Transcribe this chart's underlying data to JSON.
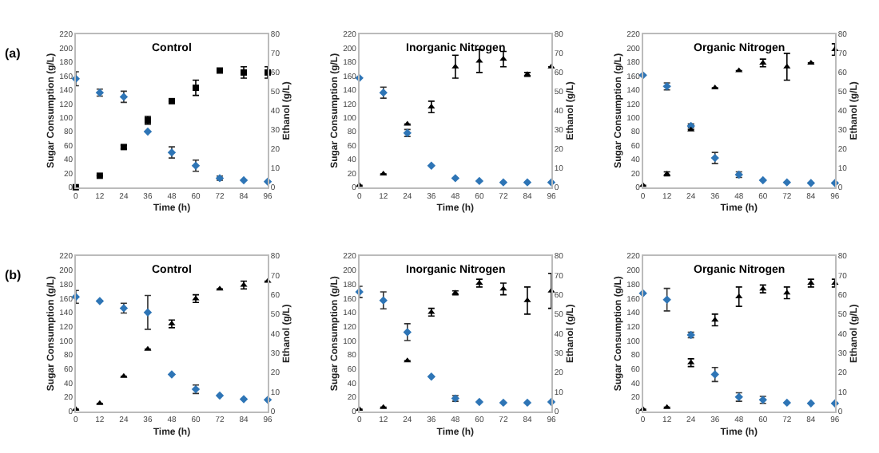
{
  "chart_data": [
    {
      "type": "scatter",
      "title": "Control",
      "xlabel": "Time (h)",
      "ylabel": "Sugar Consumption (g/L)",
      "y2label": "Ethanol (g/L)",
      "annotations": [
        "(a)"
      ],
      "x": [
        0,
        12,
        24,
        36,
        48,
        60,
        72,
        84,
        96
      ],
      "xlim": [
        0,
        96
      ],
      "xticks": [
        0,
        12,
        24,
        36,
        48,
        60,
        72,
        84,
        96
      ],
      "ylim": [
        0,
        220
      ],
      "yticks": [
        0,
        20,
        40,
        60,
        80,
        100,
        120,
        140,
        160,
        180,
        200,
        220
      ],
      "y2lim": [
        0,
        80
      ],
      "y2ticks": [
        0,
        10,
        20,
        30,
        40,
        50,
        60,
        70,
        80
      ],
      "series": [
        {
          "color": "#2e75b6",
          "marker": "diamond",
          "values": [
            156,
            136,
            130,
            80,
            50,
            31,
            13,
            10,
            8
          ],
          "errors": [
            10,
            5,
            8,
            null,
            8,
            8,
            3,
            null,
            null
          ]
        },
        {
          "color": "#000000",
          "marker": "square",
          "axis": "y2",
          "values": [
            0,
            6,
            21,
            35,
            45,
            52,
            61,
            60,
            60
          ],
          "errors": [
            null,
            null,
            1,
            2,
            null,
            4,
            null,
            3,
            3
          ]
        }
      ]
    },
    {
      "type": "scatter",
      "title": "Inorganic Nitrogen",
      "xlabel": "Time (h)",
      "ylabel": "Sugar Consumption (g/L)",
      "y2label": "Ethanol (g/L)",
      "x": [
        0,
        12,
        24,
        36,
        48,
        60,
        72,
        84,
        96
      ],
      "xlim": [
        0,
        96
      ],
      "xticks": [
        0,
        12,
        24,
        36,
        48,
        60,
        72,
        84,
        96
      ],
      "ylim": [
        0,
        220
      ],
      "yticks": [
        0,
        20,
        40,
        60,
        80,
        100,
        120,
        140,
        160,
        180,
        200,
        220
      ],
      "y2lim": [
        0,
        80
      ],
      "y2ticks": [
        0,
        10,
        20,
        30,
        40,
        50,
        60,
        70,
        80
      ],
      "series": [
        {
          "color": "#2e75b6",
          "marker": "diamond",
          "values": [
            157,
            136,
            78,
            31,
            13,
            9,
            7,
            7,
            7
          ],
          "errors": [
            null,
            8,
            5,
            null,
            null,
            null,
            null,
            null,
            null
          ]
        },
        {
          "color": "#000000",
          "marker": "triangle",
          "axis": "y2",
          "values": [
            1,
            7,
            33,
            42,
            63,
            66,
            67,
            59,
            63
          ],
          "errors": [
            null,
            null,
            null,
            3,
            6,
            6,
            4,
            1,
            null
          ]
        }
      ]
    },
    {
      "type": "scatter",
      "title": "Organic Nitrogen",
      "xlabel": "Time (h)",
      "ylabel": "Sugar Consumption (g/L)",
      "y2label": "Ethanol (g/L)",
      "x": [
        0,
        12,
        24,
        36,
        48,
        60,
        72,
        84,
        96
      ],
      "xlim": [
        0,
        96
      ],
      "xticks": [
        0,
        12,
        24,
        36,
        48,
        60,
        72,
        84,
        96
      ],
      "ylim": [
        0,
        220
      ],
      "yticks": [
        0,
        20,
        40,
        60,
        80,
        100,
        120,
        140,
        160,
        180,
        200,
        220
      ],
      "y2lim": [
        0,
        80
      ],
      "y2ticks": [
        0,
        10,
        20,
        30,
        40,
        50,
        60,
        70,
        80
      ],
      "series": [
        {
          "color": "#2e75b6",
          "marker": "diamond",
          "values": [
            161,
            145,
            88,
            42,
            18,
            10,
            7,
            6,
            6
          ],
          "errors": [
            null,
            5,
            3,
            8,
            4,
            null,
            null,
            null,
            null
          ]
        },
        {
          "color": "#000000",
          "marker": "triangle",
          "axis": "y2",
          "values": [
            1,
            7,
            30,
            52,
            61,
            65,
            63,
            65,
            72
          ],
          "errors": [
            null,
            1,
            null,
            null,
            null,
            2,
            7,
            null,
            3
          ]
        }
      ]
    },
    {
      "type": "scatter",
      "title": "Control",
      "xlabel": "Time (h)",
      "ylabel": "Sugar Consumption (g/L)",
      "y2label": "Ethanol (g/L)",
      "annotations": [
        "(b)"
      ],
      "x": [
        0,
        12,
        24,
        36,
        48,
        60,
        72,
        84,
        96
      ],
      "xlim": [
        0,
        96
      ],
      "xticks": [
        0,
        12,
        24,
        36,
        48,
        60,
        72,
        84,
        96
      ],
      "ylim": [
        0,
        220
      ],
      "yticks": [
        0,
        20,
        40,
        60,
        80,
        100,
        120,
        140,
        160,
        180,
        200,
        220
      ],
      "y2lim": [
        0,
        80
      ],
      "y2ticks": [
        0,
        10,
        20,
        30,
        40,
        50,
        60,
        70,
        80
      ],
      "series": [
        {
          "color": "#2e75b6",
          "marker": "diamond",
          "values": [
            162,
            156,
            146,
            140,
            52,
            31,
            22,
            17,
            16
          ],
          "errors": [
            9,
            null,
            7,
            24,
            null,
            6,
            null,
            null,
            null
          ]
        },
        {
          "color": "#000000",
          "marker": "triangle",
          "axis": "y2",
          "values": [
            1,
            4,
            18,
            32,
            45,
            58,
            63,
            65,
            67
          ],
          "errors": [
            null,
            null,
            null,
            null,
            2,
            2,
            null,
            2,
            null
          ]
        }
      ]
    },
    {
      "type": "scatter",
      "title": "Inorganic Nitrogen",
      "xlabel": "Time (h)",
      "ylabel": "Sugar Consumption (g/L)",
      "y2label": "Ethanol (g/L)",
      "x": [
        0,
        12,
        24,
        36,
        48,
        60,
        72,
        84,
        96
      ],
      "xlim": [
        0,
        96
      ],
      "xticks": [
        0,
        12,
        24,
        36,
        48,
        60,
        72,
        84,
        96
      ],
      "ylim": [
        0,
        220
      ],
      "yticks": [
        0,
        20,
        40,
        60,
        80,
        100,
        120,
        140,
        160,
        180,
        200,
        220
      ],
      "y2lim": [
        0,
        80
      ],
      "y2ticks": [
        0,
        10,
        20,
        30,
        40,
        50,
        60,
        70,
        80
      ],
      "series": [
        {
          "color": "#2e75b6",
          "marker": "diamond",
          "values": [
            169,
            157,
            112,
            49,
            18,
            13,
            12,
            12,
            13
          ],
          "errors": [
            8,
            12,
            12,
            null,
            4,
            null,
            null,
            null,
            null
          ]
        },
        {
          "color": "#000000",
          "marker": "triangle",
          "axis": "y2",
          "values": [
            1,
            2,
            26,
            51,
            61,
            66,
            63,
            57,
            62
          ],
          "errors": [
            null,
            null,
            null,
            2,
            1,
            2,
            3,
            7,
            9
          ]
        }
      ]
    },
    {
      "type": "scatter",
      "title": "Organic Nitrogen",
      "xlabel": "Time (h)",
      "ylabel": "Sugar Consumption (g/L)",
      "y2label": "Ethanol (g/L)",
      "x": [
        0,
        12,
        24,
        36,
        48,
        60,
        72,
        84,
        96
      ],
      "xlim": [
        0,
        96
      ],
      "xticks": [
        0,
        12,
        24,
        36,
        48,
        60,
        72,
        84,
        96
      ],
      "ylim": [
        0,
        220
      ],
      "yticks": [
        0,
        20,
        40,
        60,
        80,
        100,
        120,
        140,
        160,
        180,
        200,
        220
      ],
      "y2lim": [
        0,
        80
      ],
      "y2ticks": [
        0,
        10,
        20,
        30,
        40,
        50,
        60,
        70,
        80
      ],
      "series": [
        {
          "color": "#2e75b6",
          "marker": "diamond",
          "values": [
            167,
            158,
            108,
            52,
            20,
            16,
            12,
            11,
            11
          ],
          "errors": [
            null,
            16,
            4,
            10,
            6,
            5,
            null,
            null,
            null
          ]
        },
        {
          "color": "#000000",
          "marker": "triangle",
          "axis": "y2",
          "values": [
            1,
            2,
            25,
            47,
            59,
            63,
            61,
            66,
            66
          ],
          "errors": [
            null,
            null,
            2,
            3,
            5,
            2,
            3,
            2,
            2
          ]
        }
      ]
    }
  ]
}
